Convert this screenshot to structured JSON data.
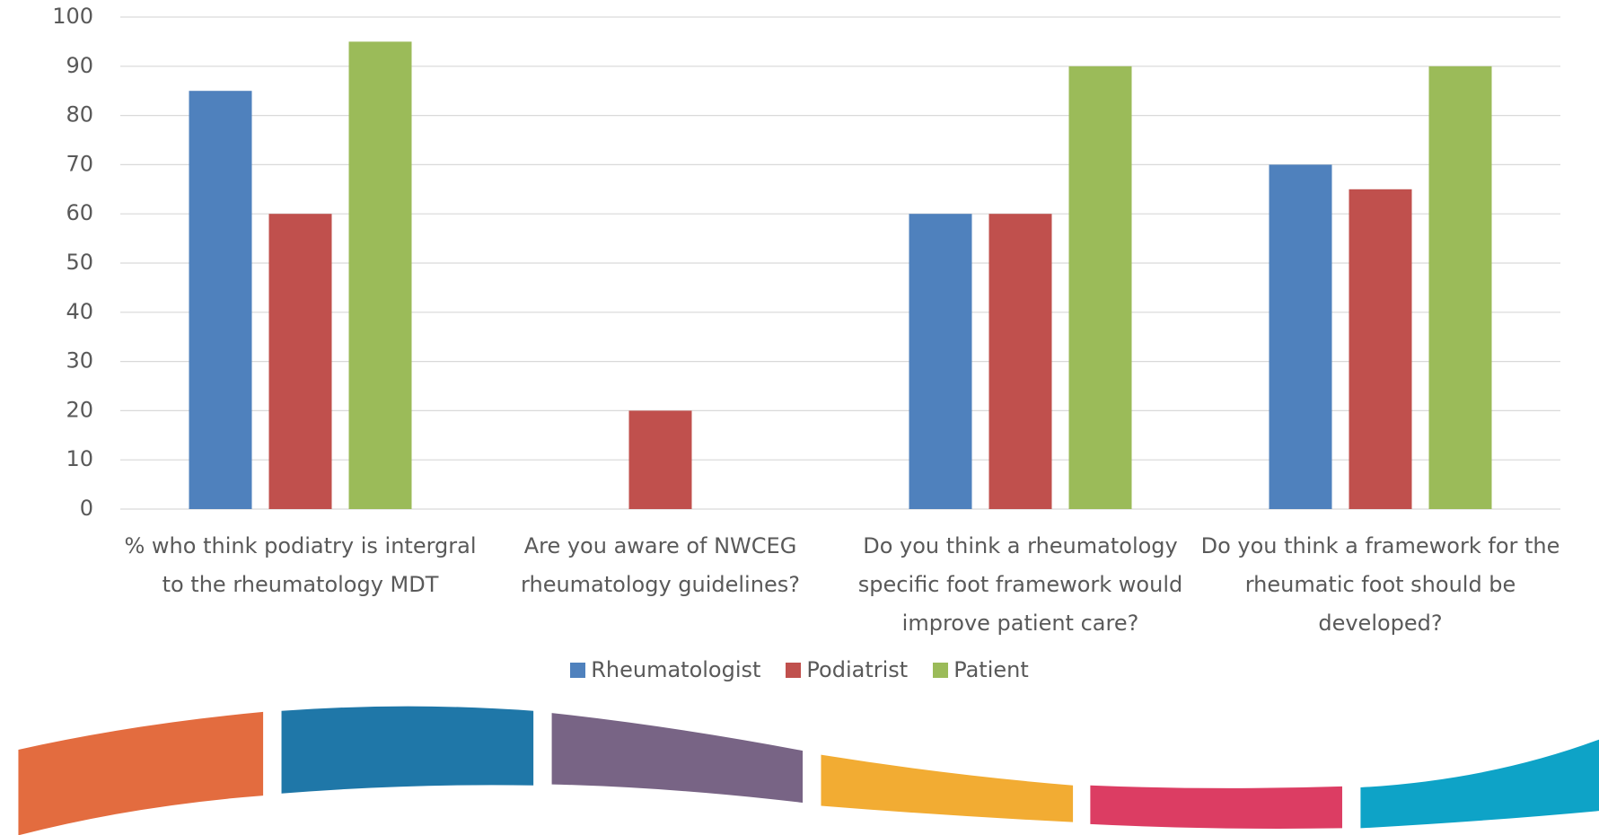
{
  "chart_data": {
    "type": "bar",
    "categories": [
      "% who think podiatry is intergral to the rheumatology MDT",
      "Are you aware of NWCEG rheumatology guidelines?",
      "Do you think a rheumatology specific foot framework would improve patient care?",
      "Do you think a framework for the rheumatic foot should be developed?"
    ],
    "series": [
      {
        "name": "Rheumatologist",
        "color": "#4f81bd",
        "values": [
          85,
          0,
          60,
          70
        ]
      },
      {
        "name": "Podiatrist",
        "color": "#c0504d",
        "values": [
          60,
          20,
          60,
          65
        ]
      },
      {
        "name": "Patient",
        "color": "#9bbb59",
        "values": [
          95,
          0,
          90,
          90
        ]
      }
    ],
    "ylim": [
      0,
      100
    ],
    "yticks": [
      0,
      10,
      20,
      30,
      40,
      50,
      60,
      70,
      80,
      90,
      100
    ],
    "grid": true,
    "legend": "bottom"
  }
}
